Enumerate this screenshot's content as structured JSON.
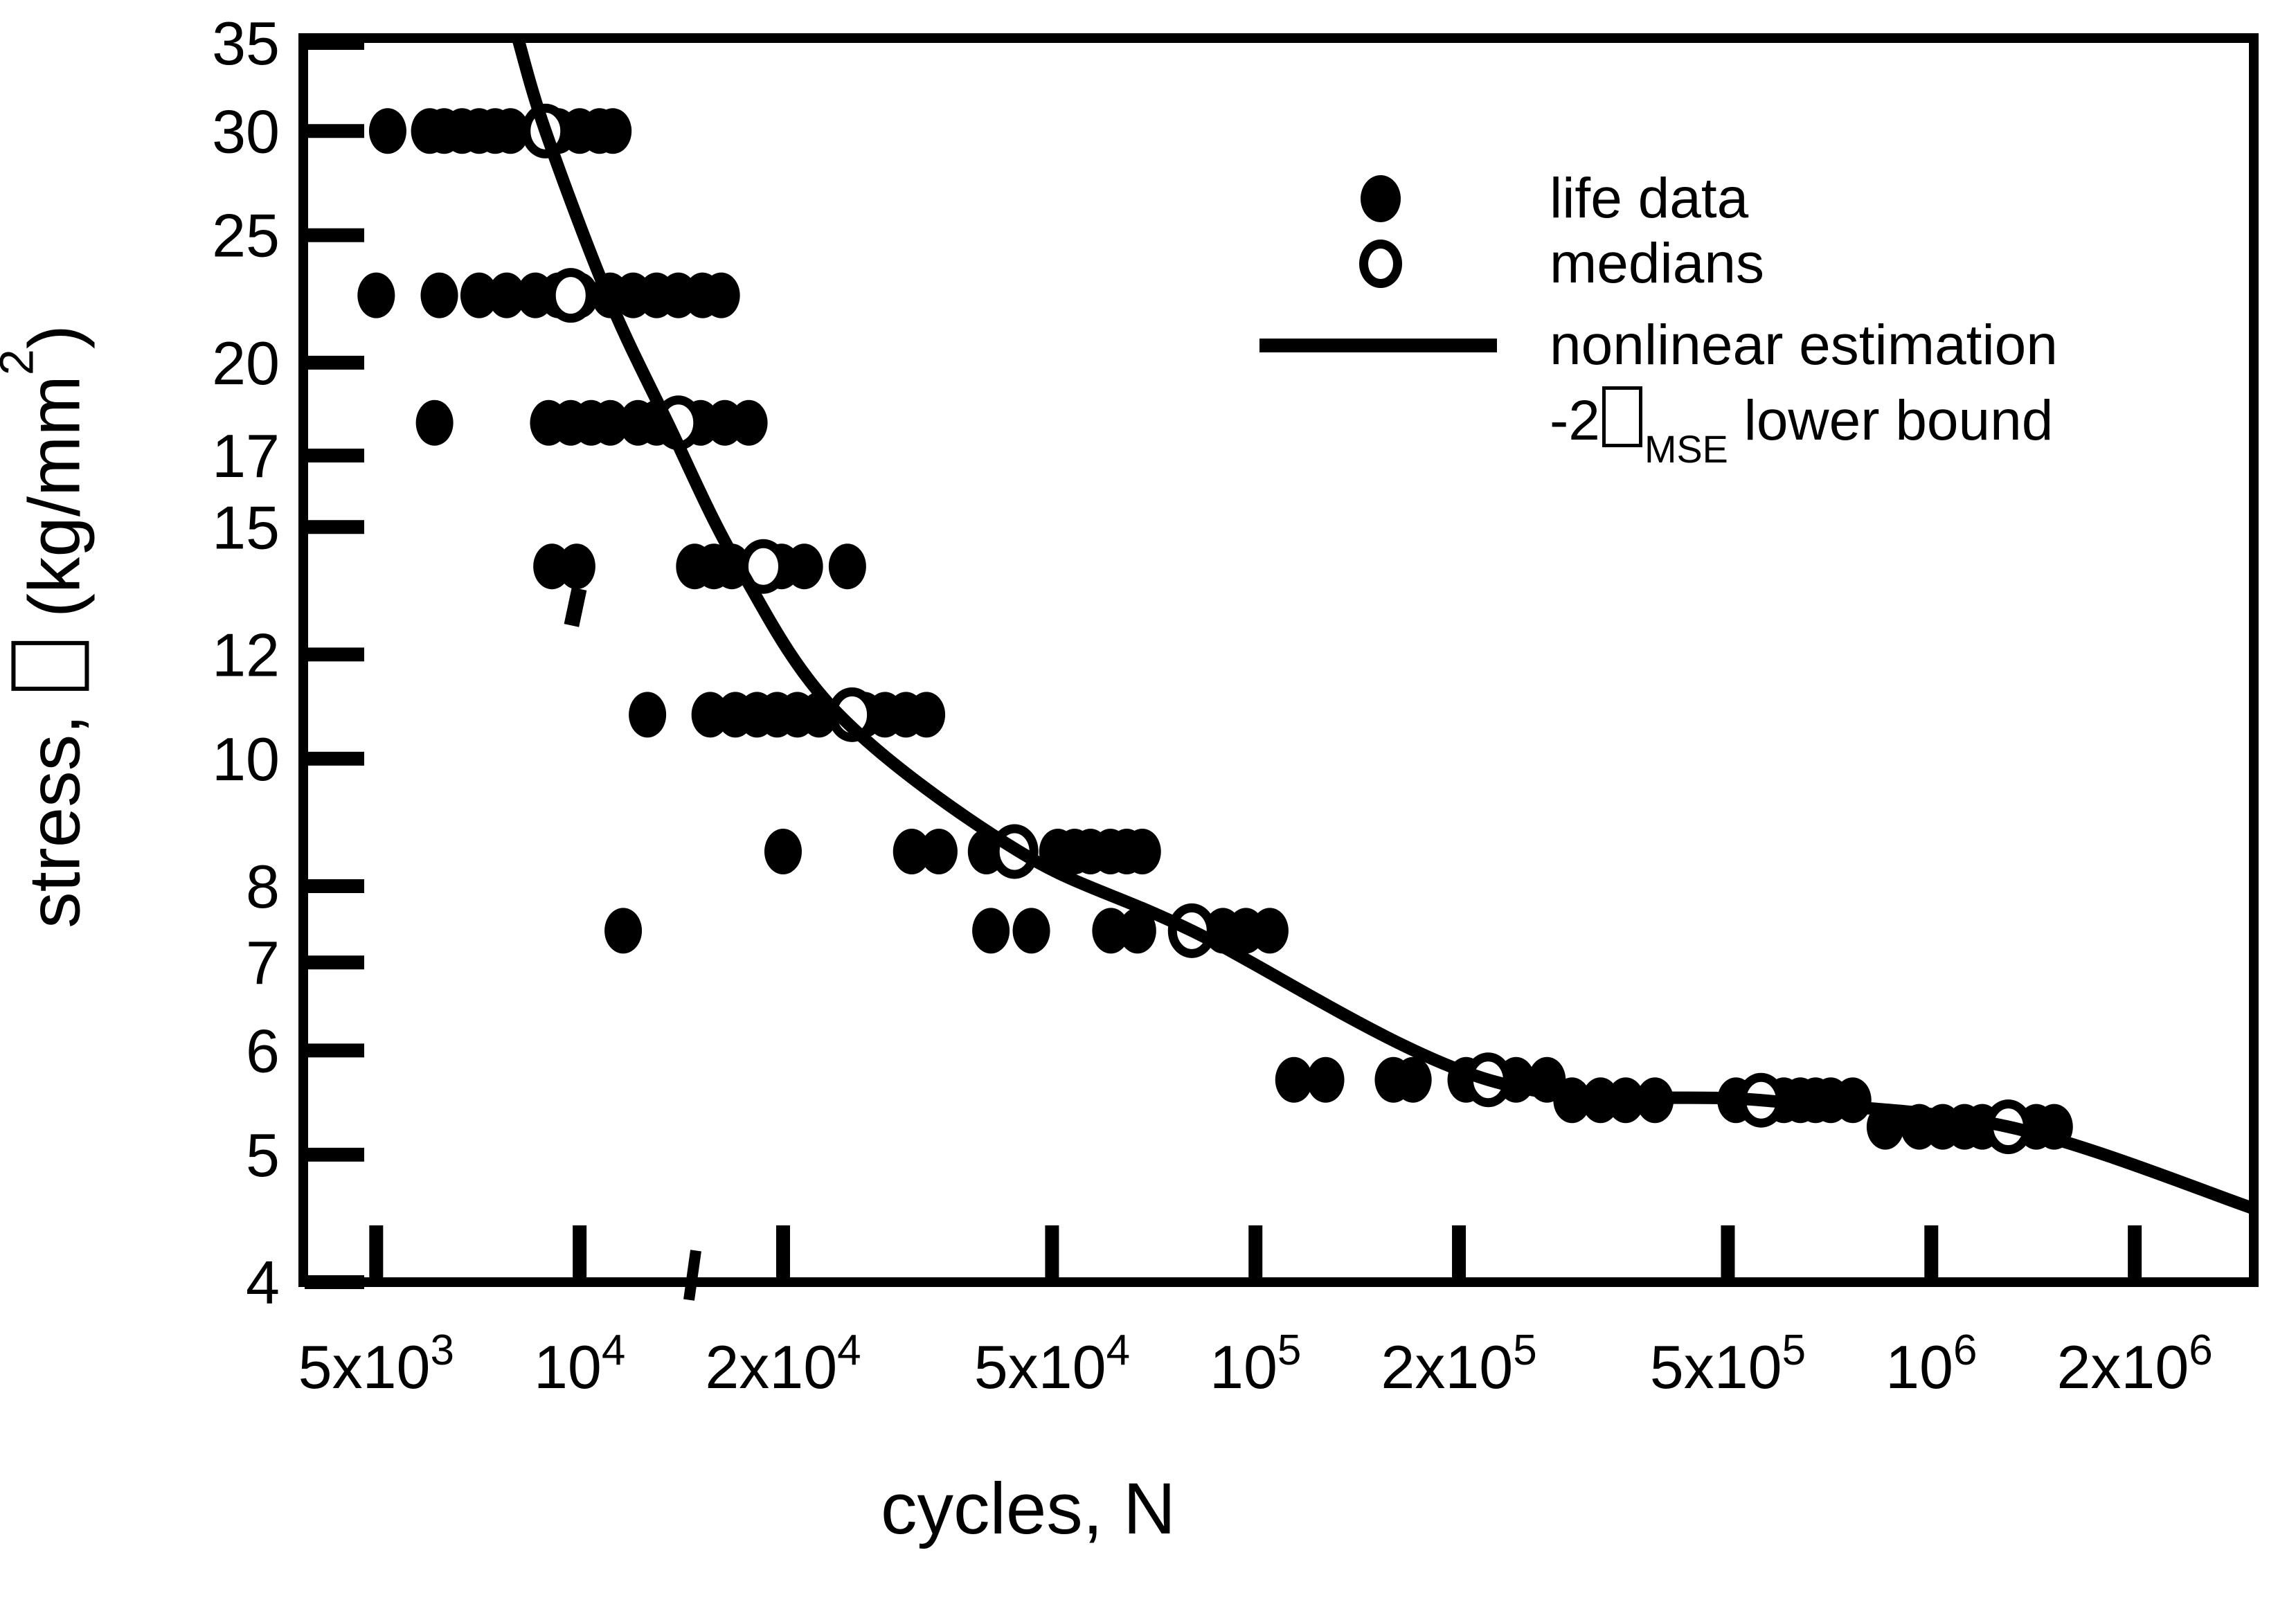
{
  "figure": {
    "bg": "#ffffff",
    "fg": "#000000"
  },
  "labels": {
    "y_pre": "stress, ",
    "y_mid": " (kg/mm",
    "y_sup": "2",
    "y_post": ")",
    "x": "cycles, N"
  },
  "legend": {
    "items": [
      {
        "symbol": "filled-circle",
        "label": "life data"
      },
      {
        "symbol": "open-circle",
        "label": "medians"
      },
      {
        "symbol": "line",
        "label": "nonlinear estimation"
      }
    ],
    "row4": {
      "pre": "-2",
      "sub": "MSE",
      "post": " lower bound"
    }
  },
  "chart_data": {
    "type": "scatter",
    "title": "",
    "xlabel": "cycles, N",
    "ylabel": "stress (kg/mm2)",
    "x_scale": "log",
    "y_scale": "log",
    "xlim": [
      3900,
      3000000
    ],
    "ylim": [
      4,
      35.3
    ],
    "grid": false,
    "legend_position": "upper-right-inside",
    "x_ticks": [
      {
        "value": 5000,
        "base": "5x10",
        "exp": "3"
      },
      {
        "value": 10000,
        "base": "10",
        "exp": "4"
      },
      {
        "value": 20000,
        "base": "2x10",
        "exp": "4"
      },
      {
        "value": 50000,
        "base": "5x10",
        "exp": "4"
      },
      {
        "value": 100000,
        "base": "10",
        "exp": "5"
      },
      {
        "value": 200000,
        "base": "2x10",
        "exp": "5"
      },
      {
        "value": 500000,
        "base": "5x10",
        "exp": "5"
      },
      {
        "value": 1000000,
        "base": "10",
        "exp": "6"
      },
      {
        "value": 2000000,
        "base": "2x10",
        "exp": "6"
      }
    ],
    "y_ticks": [
      35,
      30,
      25,
      20,
      17,
      15,
      12,
      10,
      8,
      7,
      6,
      5,
      4
    ],
    "series": [
      {
        "name": "life data",
        "marker": "filled-circle",
        "points": [
          [
            5200,
            30
          ],
          [
            6000,
            30
          ],
          [
            6300,
            30
          ],
          [
            6700,
            30
          ],
          [
            7100,
            30
          ],
          [
            7500,
            30
          ],
          [
            7900,
            30
          ],
          [
            9300,
            30
          ],
          [
            10000,
            30
          ],
          [
            10700,
            30
          ],
          [
            11200,
            30
          ],
          [
            5000,
            22.5
          ],
          [
            6200,
            22.5
          ],
          [
            7100,
            22.5
          ],
          [
            7800,
            22.5
          ],
          [
            8600,
            22.5
          ],
          [
            9300,
            22.5
          ],
          [
            10000,
            22.5
          ],
          [
            11100,
            22.5
          ],
          [
            12000,
            22.5
          ],
          [
            13000,
            22.5
          ],
          [
            14000,
            22.5
          ],
          [
            15200,
            22.5
          ],
          [
            16200,
            22.5
          ],
          [
            6100,
            18
          ],
          [
            9000,
            18
          ],
          [
            9700,
            18
          ],
          [
            10400,
            18
          ],
          [
            11100,
            18
          ],
          [
            12200,
            18
          ],
          [
            13000,
            18
          ],
          [
            15100,
            18
          ],
          [
            16400,
            18
          ],
          [
            17800,
            18
          ],
          [
            9100,
            14
          ],
          [
            9900,
            14
          ],
          [
            14800,
            14
          ],
          [
            15800,
            14
          ],
          [
            16800,
            14
          ],
          [
            19900,
            14
          ],
          [
            21500,
            14
          ],
          [
            24900,
            14
          ],
          [
            12600,
            10.8
          ],
          [
            15600,
            10.8
          ],
          [
            17000,
            10.8
          ],
          [
            18300,
            10.8
          ],
          [
            19600,
            10.8
          ],
          [
            21000,
            10.8
          ],
          [
            22600,
            10.8
          ],
          [
            26400,
            10.8
          ],
          [
            28300,
            10.8
          ],
          [
            30400,
            10.8
          ],
          [
            32600,
            10.8
          ],
          [
            20000,
            8.5
          ],
          [
            31000,
            8.5
          ],
          [
            34000,
            8.5
          ],
          [
            40000,
            8.5
          ],
          [
            51000,
            8.5
          ],
          [
            54000,
            8.5
          ],
          [
            57000,
            8.5
          ],
          [
            61000,
            8.5
          ],
          [
            64500,
            8.5
          ],
          [
            68000,
            8.5
          ],
          [
            11600,
            7.4
          ],
          [
            40600,
            7.4
          ],
          [
            46600,
            7.4
          ],
          [
            61100,
            7.4
          ],
          [
            66900,
            7.4
          ],
          [
            89500,
            7.4
          ],
          [
            96800,
            7.4
          ],
          [
            105000,
            7.4
          ],
          [
            114000,
            5.7
          ],
          [
            127000,
            5.7
          ],
          [
            160000,
            5.7
          ],
          [
            171000,
            5.7
          ],
          [
            205000,
            5.7
          ],
          [
            243000,
            5.7
          ],
          [
            270000,
            5.7
          ],
          [
            294000,
            5.5
          ],
          [
            324000,
            5.5
          ],
          [
            353000,
            5.5
          ],
          [
            390000,
            5.5
          ],
          [
            514000,
            5.5
          ],
          [
            605000,
            5.5
          ],
          [
            640000,
            5.5
          ],
          [
            674000,
            5.5
          ],
          [
            710000,
            5.5
          ],
          [
            765000,
            5.5
          ],
          [
            855000,
            5.25
          ],
          [
            960000,
            5.25
          ],
          [
            1040000,
            5.25
          ],
          [
            1120000,
            5.25
          ],
          [
            1190000,
            5.25
          ],
          [
            1430000,
            5.25
          ],
          [
            1520000,
            5.25
          ]
        ]
      },
      {
        "name": "medians",
        "marker": "open-circle",
        "points": [
          [
            8900,
            30
          ],
          [
            9700,
            22.5
          ],
          [
            14000,
            18
          ],
          [
            18700,
            14
          ],
          [
            25300,
            10.8
          ],
          [
            44000,
            8.5
          ],
          [
            80500,
            7.4
          ],
          [
            221000,
            5.7
          ],
          [
            560000,
            5.5
          ],
          [
            1300000,
            5.25
          ]
        ]
      },
      {
        "name": "nonlinear estimation",
        "type": "line",
        "points": [
          [
            8100,
            35.3
          ],
          [
            8900,
            30
          ],
          [
            11000,
            22.5
          ],
          [
            13500,
            18
          ],
          [
            17200,
            14
          ],
          [
            24200,
            10.8
          ],
          [
            44700,
            8.5
          ],
          [
            80500,
            7.4
          ],
          [
            221000,
            5.7
          ],
          [
            560000,
            5.5
          ],
          [
            1300000,
            5.25
          ],
          [
            3000000,
            4.55
          ]
        ]
      }
    ]
  }
}
